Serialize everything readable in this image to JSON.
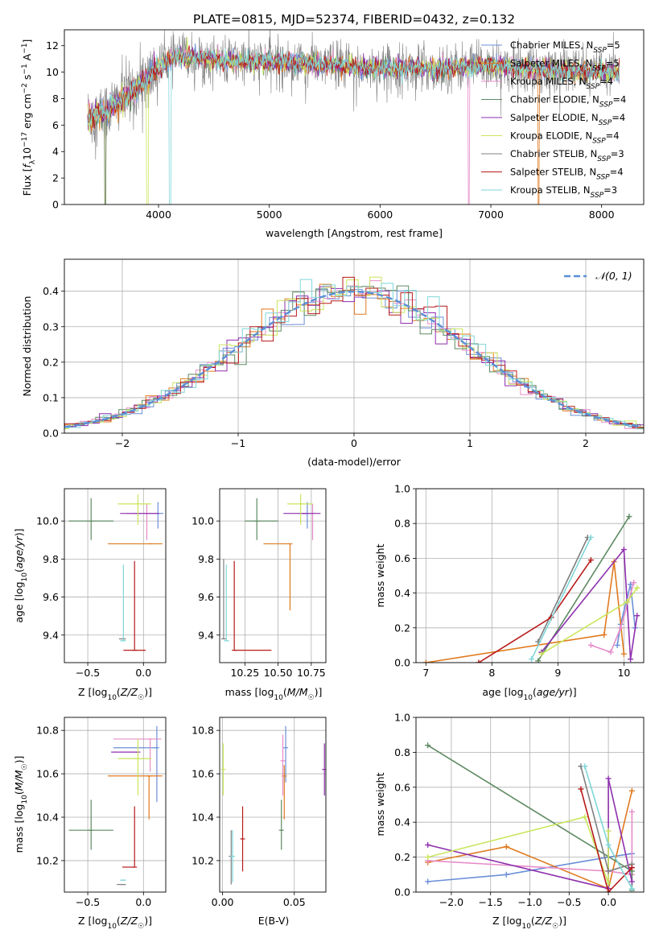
{
  "figure_title": "PLATE=0815, MJD=52374, FIBERID=0432, z=0.132",
  "colors": {
    "chabrier_miles": "#6b8fd8",
    "salpeter_miles": "#e07a1f",
    "kroupa_miles": "#e68cc8",
    "chabrier_elodie": "#5e8a62",
    "salpeter_elodie": "#8e2fae",
    "kroupa_elodie": "#c9e65c",
    "chabrier_stelib": "#808080",
    "salpeter_stelib": "#b81a1a",
    "kroupa_stelib": "#7fd6d8",
    "gaussian": "#5b8fd6"
  },
  "chart_data": [
    {
      "id": "spectrum",
      "type": "line",
      "title": "",
      "xlabel": "wavelength [Angstrom, rest frame]",
      "ylabel": "Flux [f_λ 10^-17 erg cm^-2 s^-1 A^-1]",
      "xlim": [
        3150,
        8380
      ],
      "ylim": [
        0,
        13.2
      ],
      "xticks": [
        4000,
        5000,
        6000,
        7000,
        8000
      ],
      "yticks": [
        0,
        2,
        4,
        6,
        8,
        10,
        12
      ],
      "grid": false,
      "legend_position": "right",
      "data_range": [
        3360,
        8160
      ],
      "continuum": {
        "x": [
          3360,
          3500,
          3700,
          3900,
          4100,
          4300,
          4600,
          5000,
          5500,
          6000,
          6500,
          7000,
          7500,
          8160
        ],
        "y": [
          6.6,
          6.8,
          8.2,
          9.5,
          11.0,
          11.2,
          10.8,
          10.8,
          10.6,
          10.3,
          10.3,
          10.5,
          10.2,
          10.0
        ]
      },
      "series": [
        {
          "key": "chabrier_miles",
          "name_prefix": "Chabrier MILES, N",
          "name_sub": "SSP",
          "name_suffix": "=5",
          "color": "#6b8fd8"
        },
        {
          "key": "salpeter_miles",
          "name_prefix": "Salpeter MILES, N",
          "name_sub": "SSP",
          "name_suffix": "=5",
          "color": "#e07a1f"
        },
        {
          "key": "kroupa_miles",
          "name_prefix": "Kroupa MILES, N",
          "name_sub": "SSP",
          "name_suffix": "=4",
          "color": "#e68cc8"
        },
        {
          "key": "chabrier_elodie",
          "name_prefix": "Chabrier ELODIE, N",
          "name_sub": "SSP",
          "name_suffix": "=4",
          "color": "#5e8a62"
        },
        {
          "key": "salpeter_elodie",
          "name_prefix": "Salpeter ELODIE, N",
          "name_sub": "SSP",
          "name_suffix": "=4",
          "color": "#8e2fae"
        },
        {
          "key": "kroupa_elodie",
          "name_prefix": "Kroupa ELODIE, N",
          "name_sub": "SSP",
          "name_suffix": "=4",
          "color": "#c9e65c"
        },
        {
          "key": "chabrier_stelib",
          "name_prefix": "Chabrier STELIB, N",
          "name_sub": "SSP",
          "name_suffix": "=3",
          "color": "#808080"
        },
        {
          "key": "salpeter_stelib",
          "name_prefix": "Salpeter STELIB, N",
          "name_sub": "SSP",
          "name_suffix": "=4",
          "color": "#b81a1a"
        },
        {
          "key": "kroupa_stelib",
          "name_prefix": "Kroupa STELIB, N",
          "name_sub": "SSP",
          "name_suffix": "=3",
          "color": "#7fd6d8"
        }
      ]
    },
    {
      "id": "residuals",
      "type": "histogram",
      "title": "",
      "xlabel": "(data-model)/error",
      "ylabel": "Normed distribution",
      "xlim": [
        -2.5,
        2.5
      ],
      "ylim": [
        0,
        0.49
      ],
      "xticks": [
        -2,
        -1,
        0,
        1,
        2
      ],
      "yticks": [
        0.0,
        0.1,
        0.2,
        0.3,
        0.4
      ],
      "grid": true,
      "legend_position": "top-right",
      "bin_width": 0.1,
      "gaussian_label": "N(0, 1)"
    },
    {
      "id": "age_vs_Z",
      "type": "errorbar",
      "xlabel": "Z [log10(Z/Z☉)]",
      "ylabel": "age [log10(age/yr)]",
      "xlim": [
        -0.71,
        0.2
      ],
      "ylim": [
        9.255,
        10.17
      ],
      "xticks": [
        -0.5,
        0.0
      ],
      "yticks": [
        9.4,
        9.6,
        9.8,
        10.0
      ],
      "grid": true,
      "points": [
        {
          "key": "chabrier_miles",
          "x": 0.13,
          "xerr": [
            0.14,
            0.05
          ],
          "y": 10.04,
          "yerr": [
            0.08,
            0.06
          ]
        },
        {
          "key": "salpeter_miles",
          "x": 0.06,
          "xerr": [
            0.38,
            0.11
          ],
          "y": 9.88,
          "yerr": [
            0.0,
            0.0
          ]
        },
        {
          "key": "kroupa_miles",
          "x": 0.03,
          "xerr": [
            0.18,
            0.08
          ],
          "y": 10.04,
          "yerr": [
            0.14,
            0.05
          ]
        },
        {
          "key": "chabrier_elodie",
          "x": -0.47,
          "xerr": [
            0.2,
            0.2
          ],
          "y": 10.0,
          "yerr": [
            0.1,
            0.12
          ]
        },
        {
          "key": "salpeter_elodie",
          "x": -0.05,
          "xerr": [
            0.16,
            0.19
          ],
          "y": 10.04,
          "yerr": [
            0.0,
            0.0
          ]
        },
        {
          "key": "kroupa_elodie",
          "x": -0.05,
          "xerr": [
            0.18,
            0.12
          ],
          "y": 10.09,
          "yerr": [
            0.11,
            0.05
          ]
        },
        {
          "key": "chabrier_stelib",
          "x": -0.18,
          "xerr": [
            0.04,
            0.02
          ],
          "y": 9.38,
          "yerr": [
            0.0,
            0.0
          ]
        },
        {
          "key": "salpeter_stelib",
          "x": -0.08,
          "xerr": [
            0.1,
            0.1
          ],
          "y": 9.32,
          "yerr": [
            0.0,
            0.47
          ]
        },
        {
          "key": "kroupa_stelib",
          "x": -0.18,
          "xerr": [
            0.03,
            0.02
          ],
          "y": 9.37,
          "yerr": [
            0.0,
            0.4
          ]
        }
      ]
    },
    {
      "id": "age_vs_mass",
      "type": "errorbar",
      "xlabel": "mass [log10(M/M☉)]",
      "ylabel": "",
      "xlim": [
        10.06,
        10.86
      ],
      "ylim": [
        9.255,
        10.17
      ],
      "xticks": [
        10.25,
        10.5,
        10.75
      ],
      "yticks": [
        9.4,
        9.6,
        9.8,
        10.0
      ],
      "grid": true,
      "points": [
        {
          "key": "chabrier_miles",
          "x": 10.72,
          "xerr": [
            0.06,
            0.0
          ],
          "y": 10.04,
          "yerr": [
            0.08,
            0.06
          ]
        },
        {
          "key": "salpeter_miles",
          "x": 10.59,
          "xerr": [
            0.2,
            0.0
          ],
          "y": 9.88,
          "yerr": [
            0.35,
            0.0
          ]
        },
        {
          "key": "kroupa_miles",
          "x": 10.76,
          "xerr": [
            0.0,
            0.0
          ],
          "y": 10.04,
          "yerr": [
            0.14,
            0.05
          ]
        },
        {
          "key": "chabrier_elodie",
          "x": 10.34,
          "xerr": [
            0.09,
            0.16
          ],
          "y": 10.0,
          "yerr": [
            0.1,
            0.12
          ]
        },
        {
          "key": "salpeter_elodie",
          "x": 10.7,
          "xerr": [
            0.16,
            0.12
          ],
          "y": 10.04,
          "yerr": [
            0.0,
            0.0
          ]
        },
        {
          "key": "kroupa_elodie",
          "x": 10.67,
          "xerr": [
            0.1,
            0.09
          ],
          "y": 10.09,
          "yerr": [
            0.11,
            0.05
          ]
        },
        {
          "key": "chabrier_stelib",
          "x": 10.09,
          "xerr": [
            0.0,
            0.01
          ],
          "y": 9.38,
          "yerr": [
            0.0,
            0.42
          ]
        },
        {
          "key": "salpeter_stelib",
          "x": 10.17,
          "xerr": [
            0.0,
            0.28
          ],
          "y": 9.32,
          "yerr": [
            0.0,
            0.47
          ]
        },
        {
          "key": "kroupa_stelib",
          "x": 10.11,
          "xerr": [
            0.0,
            0.02
          ],
          "y": 9.37,
          "yerr": [
            0.0,
            0.4
          ]
        }
      ]
    },
    {
      "id": "weight_vs_age",
      "type": "line",
      "xlabel": "age [log10(age/yr)]",
      "ylabel": "mass weight",
      "xlim": [
        6.85,
        10.3
      ],
      "ylim": [
        0,
        1
      ],
      "xticks": [
        7,
        8,
        9,
        10
      ],
      "yticks": [
        0.0,
        0.2,
        0.4,
        0.6,
        0.8,
        1.0
      ],
      "grid": true,
      "series": [
        {
          "key": "chabrier_miles",
          "x": [
            9.9,
            9.95,
            10.1,
            10.17
          ],
          "y": [
            0.1,
            0.22,
            0.45,
            0.2
          ]
        },
        {
          "key": "salpeter_miles",
          "x": [
            7.0,
            9.7,
            9.85,
            10.0
          ],
          "y": [
            0.0,
            0.16,
            0.58,
            0.05
          ]
        },
        {
          "key": "kroupa_miles",
          "x": [
            9.5,
            9.8,
            9.95,
            10.15
          ],
          "y": [
            0.1,
            0.06,
            0.2,
            0.46
          ]
        },
        {
          "key": "chabrier_elodie",
          "x": [
            8.7,
            10.08
          ],
          "y": [
            0.01,
            0.84
          ]
        },
        {
          "key": "salpeter_elodie",
          "x": [
            8.75,
            10.0,
            10.1,
            10.2
          ],
          "y": [
            0.06,
            0.65,
            0.02,
            0.27
          ]
        },
        {
          "key": "kroupa_elodie",
          "x": [
            8.75,
            10.05,
            10.2
          ],
          "y": [
            0.05,
            0.35,
            0.43
          ]
        },
        {
          "key": "chabrier_stelib",
          "x": [
            8.7,
            9.45
          ],
          "y": [
            0.12,
            0.72
          ]
        },
        {
          "key": "salpeter_stelib",
          "x": [
            7.8,
            8.9,
            9.5
          ],
          "y": [
            0.0,
            0.26,
            0.59
          ]
        },
        {
          "key": "kroupa_stelib",
          "x": [
            8.6,
            9.5
          ],
          "y": [
            0.02,
            0.72
          ]
        }
      ]
    },
    {
      "id": "mass_vs_Z",
      "type": "errorbar",
      "xlabel": "Z [log10(Z/Z☉)]",
      "ylabel": "mass [log10(M/M☉)]",
      "xlim": [
        -0.71,
        0.2
      ],
      "ylim": [
        10.055,
        10.86
      ],
      "xticks": [
        -0.5,
        0.0
      ],
      "yticks": [
        10.2,
        10.4,
        10.6,
        10.8
      ],
      "grid": true,
      "points": [
        {
          "key": "chabrier_miles",
          "x": 0.12,
          "xerr": [
            0.39,
            0.0
          ],
          "y": 10.72,
          "yerr": [
            0.25,
            0.1
          ]
        },
        {
          "key": "salpeter_miles",
          "x": 0.05,
          "xerr": [
            0.37,
            0.12
          ],
          "y": 10.59,
          "yerr": [
            0.2,
            0.0
          ]
        },
        {
          "key": "kroupa_miles",
          "x": 0.06,
          "xerr": [
            0.33,
            0.1
          ],
          "y": 10.76,
          "yerr": [
            0.15,
            0.0
          ]
        },
        {
          "key": "chabrier_elodie",
          "x": -0.47,
          "xerr": [
            0.2,
            0.2
          ],
          "y": 10.34,
          "yerr": [
            0.09,
            0.14
          ]
        },
        {
          "key": "salpeter_elodie",
          "x": -0.05,
          "xerr": [
            0.24,
            0.0
          ],
          "y": 10.7,
          "yerr": [
            0.0,
            0.0
          ]
        },
        {
          "key": "kroupa_elodie",
          "x": -0.05,
          "xerr": [
            0.18,
            0.12
          ],
          "y": 10.67,
          "yerr": [
            0.17,
            0.09
          ]
        },
        {
          "key": "chabrier_stelib",
          "x": -0.18,
          "xerr": [
            0.06,
            0.02
          ],
          "y": 10.09,
          "yerr": [
            0.0,
            0.0
          ]
        },
        {
          "key": "salpeter_stelib",
          "x": -0.08,
          "xerr": [
            0.11,
            0.0
          ],
          "y": 10.17,
          "yerr": [
            0.0,
            0.28
          ]
        },
        {
          "key": "kroupa_stelib",
          "x": -0.18,
          "xerr": [
            0.03,
            0.02
          ],
          "y": 10.11,
          "yerr": [
            0.0,
            0.0
          ]
        }
      ]
    },
    {
      "id": "mass_vs_ebv",
      "type": "errorbar",
      "xlabel": "E(B-V)",
      "ylabel": "",
      "xlim": [
        -0.002,
        0.072
      ],
      "ylim": [
        10.055,
        10.86
      ],
      "xticks": [
        0.0,
        0.05
      ],
      "xtick_labels": [
        "0.00",
        "0.05"
      ],
      "yticks": [
        10.2,
        10.4,
        10.6,
        10.8
      ],
      "grid": true,
      "points": [
        {
          "key": "chabrier_miles",
          "x": 0.044,
          "xerr": [
            0,
            0
          ],
          "y": 10.72,
          "yerr": [
            0.16,
            0.1
          ]
        },
        {
          "key": "salpeter_miles",
          "x": 0.043,
          "xerr": [
            0,
            0
          ],
          "y": 10.59,
          "yerr": [
            0.2,
            0.05
          ]
        },
        {
          "key": "kroupa_miles",
          "x": 0.042,
          "xerr": [
            0,
            0
          ],
          "y": 10.66,
          "yerr": [
            0.16,
            0.12
          ]
        },
        {
          "key": "chabrier_elodie",
          "x": 0.041,
          "xerr": [
            0,
            0
          ],
          "y": 10.34,
          "yerr": [
            0.09,
            0.14
          ]
        },
        {
          "key": "salpeter_elodie",
          "x": 0.071,
          "xerr": [
            0,
            0
          ],
          "y": 10.62,
          "yerr": [
            0.12,
            0.12
          ]
        },
        {
          "key": "kroupa_elodie",
          "x": 0.0005,
          "xerr": [
            0,
            0
          ],
          "y": 10.62,
          "yerr": [
            0.12,
            0.12
          ]
        },
        {
          "key": "chabrier_stelib",
          "x": 0.006,
          "xerr": [
            0,
            0
          ],
          "y": 10.22,
          "yerr": [
            0.13,
            0.12
          ]
        },
        {
          "key": "salpeter_stelib",
          "x": 0.014,
          "xerr": [
            0,
            0
          ],
          "y": 10.3,
          "yerr": [
            0.15,
            0.15
          ]
        },
        {
          "key": "kroupa_stelib",
          "x": 0.007,
          "xerr": [
            0,
            0
          ],
          "y": 10.22,
          "yerr": [
            0.12,
            0.12
          ]
        }
      ]
    },
    {
      "id": "weight_vs_Z",
      "type": "line",
      "xlabel": "Z [log10(Z/Z☉)]",
      "ylabel": "mass weight",
      "xlim": [
        -2.45,
        0.45
      ],
      "ylim": [
        0,
        1
      ],
      "xticks": [
        -2.0,
        -1.5,
        -1.0,
        -0.5,
        0.0
      ],
      "yticks": [
        0.0,
        0.2,
        0.4,
        0.6,
        0.8,
        1.0
      ],
      "grid": true,
      "series": [
        {
          "key": "chabrier_miles",
          "x": [
            -2.3,
            -1.3,
            0.0,
            0.3
          ],
          "y": [
            0.06,
            0.1,
            0.2,
            0.22
          ]
        },
        {
          "key": "salpeter_miles",
          "x": [
            -2.3,
            -1.3,
            0.0,
            0.3
          ],
          "y": [
            0.17,
            0.26,
            0.02,
            0.58
          ]
        },
        {
          "key": "kroupa_miles",
          "x": [
            -2.3,
            0.0,
            0.3,
            0.3
          ],
          "y": [
            0.18,
            0.12,
            0.1,
            0.46
          ]
        },
        {
          "key": "chabrier_elodie",
          "x": [
            -2.3,
            0.3,
            0.3
          ],
          "y": [
            0.84,
            0.12,
            0.01
          ]
        },
        {
          "key": "salpeter_elodie",
          "x": [
            -2.3,
            0.0,
            0.0,
            0.3
          ],
          "y": [
            0.27,
            0.02,
            0.65,
            0.06
          ]
        },
        {
          "key": "kroupa_elodie",
          "x": [
            -2.3,
            -0.3,
            0.0,
            0.0
          ],
          "y": [
            0.2,
            0.43,
            0.05,
            0.35
          ]
        },
        {
          "key": "chabrier_stelib",
          "x": [
            -0.35,
            0.0,
            0.3
          ],
          "y": [
            0.72,
            0.12,
            0.16
          ]
        },
        {
          "key": "salpeter_stelib",
          "x": [
            -0.35,
            0.0,
            0.3
          ],
          "y": [
            0.59,
            0.0,
            0.14
          ]
        },
        {
          "key": "kroupa_stelib",
          "x": [
            -0.3,
            0.0,
            0.3
          ],
          "y": [
            0.72,
            0.27,
            0.02
          ]
        }
      ]
    }
  ]
}
